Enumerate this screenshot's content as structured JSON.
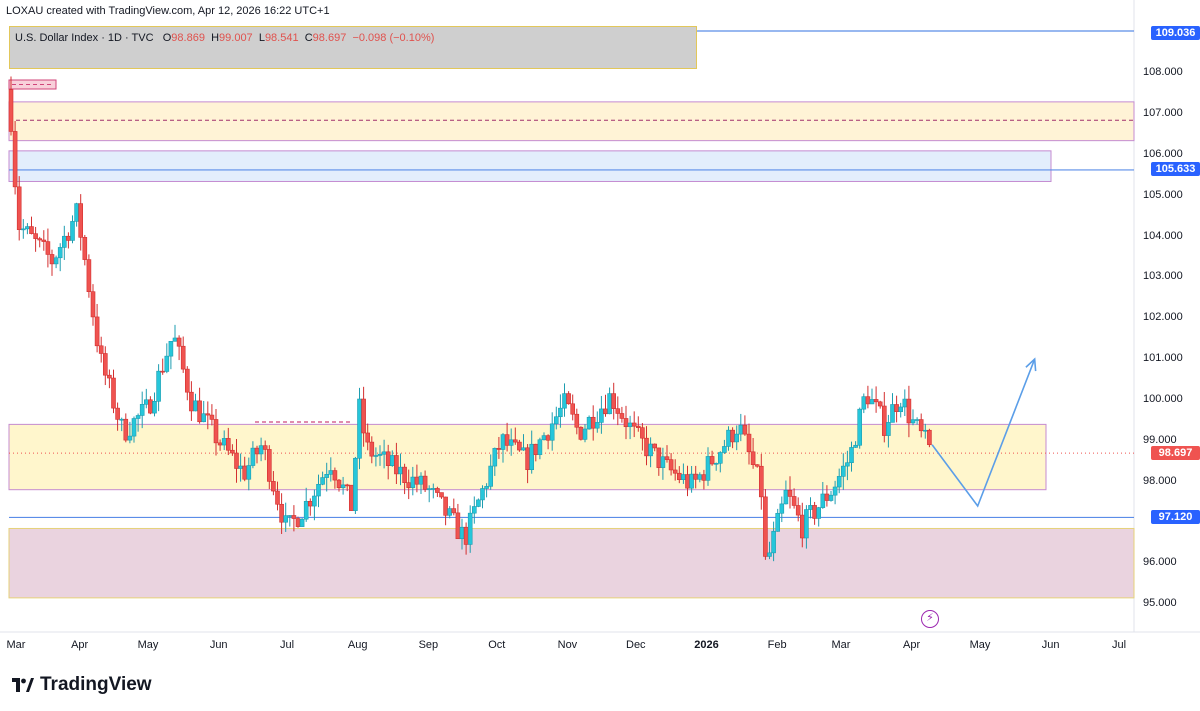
{
  "header": {
    "text": "LOXAU created with TradingView.com, Apr 12, 2026 16:22 UTC+1"
  },
  "legend": {
    "symbol": "U.S. Dollar Index · 1D · TVC",
    "open_label": "O",
    "open": "98.869",
    "high_label": "H",
    "high": "99.007",
    "low_label": "L",
    "low": "98.541",
    "close_label": "C",
    "close": "98.697",
    "change": "−0.098 (−0.10%)"
  },
  "price_tags": {
    "top": "109.036",
    "resistance": "105.633",
    "current": "98.697",
    "support": "97.120"
  },
  "brand": {
    "name": "TradingView"
  },
  "icons": {
    "logo": "tradingview-logo-icon",
    "flash": "flash-icon"
  },
  "colors": {
    "up": "#26c6da",
    "down": "#ef5350",
    "zone_yellow": "#fff3cd",
    "zone_blue": "#e3f0fd",
    "zone_pink": "#e8d0dc",
    "projection": "#5b9ee8"
  },
  "chart_data": {
    "type": "candlestick",
    "title": "U.S. Dollar Index",
    "interval": "1D",
    "y_axis": {
      "ylim": [
        94.5,
        109.4
      ],
      "ticks": [
        "108.000",
        "107.000",
        "106.000",
        "105.000",
        "104.000",
        "103.000",
        "102.000",
        "101.000",
        "100.000",
        "99.000",
        "98.000",
        "96.000",
        "95.000"
      ],
      "tick_values": [
        108,
        107,
        106,
        105,
        104,
        103,
        102,
        101,
        100,
        99,
        98,
        96,
        95
      ]
    },
    "x_axis": {
      "ticks": [
        "Mar",
        "Apr",
        "May",
        "Jun",
        "Jul",
        "Aug",
        "Sep",
        "Oct",
        "Nov",
        "Dec",
        "2026",
        "Feb",
        "Mar",
        "Apr",
        "May",
        "Jun",
        "Jul"
      ],
      "bold_ticks": [
        "2026"
      ]
    },
    "price_path": [
      [
        "2025-03-01",
        107.6
      ],
      [
        "2025-03-05",
        104.3
      ],
      [
        "2025-03-20",
        103.4
      ],
      [
        "2025-03-31",
        104.6
      ],
      [
        "2025-04-10",
        101.0
      ],
      [
        "2025-04-20",
        99.2
      ],
      [
        "2025-05-01",
        99.8
      ],
      [
        "2025-05-12",
        101.6
      ],
      [
        "2025-05-20",
        100.0
      ],
      [
        "2025-06-01",
        99.0
      ],
      [
        "2025-06-12",
        98.2
      ],
      [
        "2025-06-20",
        98.9
      ],
      [
        "2025-07-01",
        96.8
      ],
      [
        "2025-07-10",
        97.5
      ],
      [
        "2025-07-20",
        98.5
      ],
      [
        "2025-07-30",
        97.3
      ],
      [
        "2025-08-01",
        100.0
      ],
      [
        "2025-08-05",
        98.8
      ],
      [
        "2025-08-20",
        98.2
      ],
      [
        "2025-09-01",
        97.8
      ],
      [
        "2025-09-17",
        96.6
      ],
      [
        "2025-09-25",
        97.8
      ],
      [
        "2025-10-03",
        99.0
      ],
      [
        "2025-10-14",
        98.5
      ],
      [
        "2025-10-31",
        99.9
      ],
      [
        "2025-11-06",
        99.2
      ],
      [
        "2025-11-20",
        100.1
      ],
      [
        "2025-12-01",
        99.1
      ],
      [
        "2025-12-15",
        98.3
      ],
      [
        "2025-12-26",
        97.9
      ],
      [
        "2026-01-10",
        99.0
      ],
      [
        "2026-01-15",
        99.4
      ],
      [
        "2026-01-25",
        97.8
      ],
      [
        "2026-01-27",
        95.9
      ],
      [
        "2026-02-05",
        97.7
      ],
      [
        "2026-02-12",
        96.9
      ],
      [
        "2026-02-25",
        97.8
      ],
      [
        "2026-03-05",
        98.6
      ],
      [
        "2026-03-12",
        100.2
      ],
      [
        "2026-03-20",
        99.4
      ],
      [
        "2026-03-27",
        100.1
      ],
      [
        "2026-04-01",
        99.5
      ],
      [
        "2026-04-10",
        98.7
      ]
    ],
    "zones": [
      {
        "name": "resistance-zone-yellow",
        "from": 106.35,
        "to": 107.3,
        "mid": 106.85
      },
      {
        "name": "resistance-zone-blue",
        "from": 105.35,
        "to": 106.1
      },
      {
        "name": "range-zone-yellow",
        "from": 97.8,
        "to": 99.4
      },
      {
        "name": "demand-zone-pink",
        "from": 95.15,
        "to": 96.85
      }
    ],
    "horizontal_levels": [
      109.036,
      105.633,
      97.12
    ],
    "current_price": 98.697,
    "projection": [
      [
        "2026-04-10",
        98.9
      ],
      [
        "2026-04-30",
        97.4
      ],
      [
        "2026-05-25",
        101.0
      ]
    ]
  }
}
